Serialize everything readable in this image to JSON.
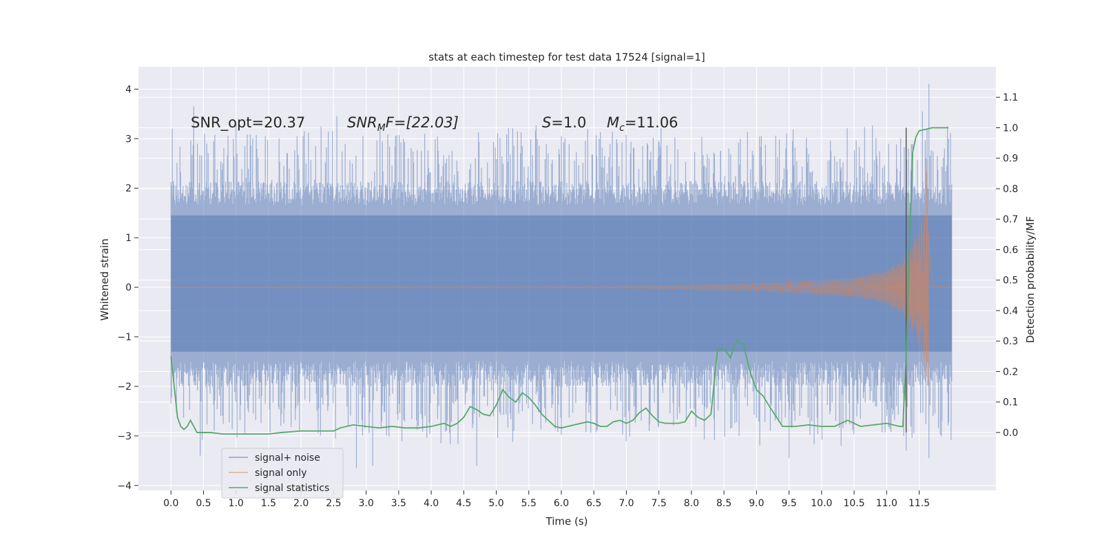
{
  "chart_data": {
    "type": "line",
    "title": "stats at each timestep for test data 17524 [signal=1]",
    "xlabel": "Time (s)",
    "ylabel": "Whitened strain",
    "y2label": "Detection probability/MF",
    "xlim": [
      -0.5,
      12.68
    ],
    "ylim": [
      -4.1,
      4.45
    ],
    "y2lim": [
      -0.19,
      1.2
    ],
    "xticks": [
      0.0,
      0.5,
      1.0,
      1.5,
      2.0,
      2.5,
      3.0,
      3.5,
      4.0,
      4.5,
      5.0,
      5.5,
      6.0,
      6.5,
      7.0,
      7.5,
      8.0,
      8.5,
      9.0,
      9.5,
      10.0,
      10.5,
      11.0,
      11.5
    ],
    "xtick_labels": [
      "0.0",
      "0.5",
      "1.0",
      "1.5",
      "2.0",
      "2.5",
      "3.0",
      "3.5",
      "4.0",
      "4.5",
      "5.0",
      "5.5",
      "6.0",
      "6.5",
      "7.0",
      "7.5",
      "8.0",
      "8.5",
      "9.0",
      "9.5",
      "10.0",
      "10.5",
      "11.0",
      "11.5"
    ],
    "yticks": [
      4,
      3,
      2,
      1,
      0,
      -1,
      -2,
      -3,
      -4
    ],
    "ytick_labels": [
      "4",
      "3",
      "2",
      "1",
      "0",
      "−1",
      "−2",
      "−3",
      "−4"
    ],
    "y2ticks": [
      1.1,
      1.0,
      0.9,
      0.8,
      0.7,
      0.6,
      0.5,
      0.4,
      0.3,
      0.2,
      0.1,
      0.0
    ],
    "y2tick_labels": [
      "1.1",
      "1.0",
      "0.9",
      "0.8",
      "0.7",
      "0.6",
      "0.5",
      "0.4",
      "0.3",
      "0.2",
      "0.1",
      "0.0"
    ],
    "annotations": {
      "snr_opt": "SNR_opt=20.37",
      "snr_mf_base": "SNR",
      "snr_mf_sub": "M",
      "snr_mf_rest": "F=[22.03]",
      "s_var": "S",
      "s_val": "=1.0",
      "mc_var": "M",
      "mc_sub": "c",
      "mc_val": "=11.06"
    },
    "marker_time": 11.3,
    "series": [
      {
        "name": "signal+ noise",
        "color": "#4c72b0",
        "description": "whitened strain with noise",
        "t_start": 0.0,
        "t_end": 12.0,
        "envelope_pos": 1.95,
        "envelope_neg": -1.75,
        "peaks": [
          [
            0.02,
            3.2
          ],
          [
            0.35,
            3.65
          ],
          [
            0.55,
            2.9
          ],
          [
            1.0,
            3.3
          ],
          [
            1.45,
            3.05
          ],
          [
            2.05,
            3.15
          ],
          [
            2.55,
            3.45
          ],
          [
            2.95,
            3.05
          ],
          [
            3.45,
            3.05
          ],
          [
            3.9,
            3.1
          ],
          [
            5.4,
            2.85
          ],
          [
            6.0,
            3.05
          ],
          [
            7.25,
            2.85
          ],
          [
            8.45,
            2.75
          ],
          [
            9.45,
            2.8
          ],
          [
            10.2,
            2.65
          ],
          [
            10.85,
            2.6
          ],
          [
            11.55,
            3.55
          ],
          [
            11.65,
            4.1
          ],
          [
            11.95,
            3.0
          ]
        ],
        "troughs": [
          [
            0.45,
            -3.4
          ],
          [
            2.85,
            -3.65
          ],
          [
            3.1,
            -3.6
          ],
          [
            3.55,
            -3.1
          ],
          [
            4.15,
            -3.15
          ],
          [
            4.7,
            -3.6
          ],
          [
            7.35,
            -2.9
          ],
          [
            8.6,
            -2.85
          ],
          [
            9.05,
            -3.2
          ],
          [
            9.5,
            -3.45
          ],
          [
            10.3,
            -3.2
          ],
          [
            11.3,
            -3.3
          ],
          [
            11.65,
            -3.45
          ],
          [
            11.85,
            -2.7
          ]
        ]
      },
      {
        "name": "signal only",
        "color": "#dd8452",
        "description": "chirp signal",
        "t_start": 0.0,
        "t_end": 12.0,
        "merger_time": 11.65,
        "amplitude_points": [
          [
            0.0,
            0.01
          ],
          [
            7.0,
            0.02
          ],
          [
            8.0,
            0.05
          ],
          [
            9.0,
            0.08
          ],
          [
            10.0,
            0.15
          ],
          [
            10.5,
            0.2
          ],
          [
            11.0,
            0.35
          ],
          [
            11.3,
            0.65
          ],
          [
            11.5,
            1.2
          ],
          [
            11.6,
            2.2
          ],
          [
            11.65,
            3.0
          ],
          [
            11.68,
            1.0
          ],
          [
            11.72,
            0.05
          ],
          [
            12.0,
            0.0
          ]
        ]
      },
      {
        "name": "signal statistics",
        "color": "#55a868",
        "axis": "right",
        "x": [
          0.0,
          0.05,
          0.1,
          0.15,
          0.2,
          0.25,
          0.3,
          0.35,
          0.4,
          0.5,
          0.6,
          0.8,
          1.0,
          1.2,
          1.5,
          1.7,
          2.0,
          2.2,
          2.5,
          2.6,
          2.8,
          3.0,
          3.2,
          3.4,
          3.6,
          3.8,
          4.0,
          4.1,
          4.2,
          4.3,
          4.4,
          4.5,
          4.6,
          4.7,
          4.8,
          4.9,
          5.0,
          5.1,
          5.2,
          5.3,
          5.4,
          5.5,
          5.6,
          5.7,
          5.8,
          5.9,
          6.0,
          6.2,
          6.4,
          6.5,
          6.6,
          6.7,
          6.8,
          6.9,
          7.0,
          7.1,
          7.2,
          7.3,
          7.4,
          7.5,
          7.6,
          7.8,
          7.9,
          8.0,
          8.1,
          8.2,
          8.3,
          8.4,
          8.5,
          8.6,
          8.65,
          8.7,
          8.8,
          8.9,
          9.0,
          9.1,
          9.2,
          9.4,
          9.6,
          9.8,
          10.0,
          10.2,
          10.4,
          10.5,
          10.6,
          10.8,
          11.0,
          11.2,
          11.25,
          11.3,
          11.35,
          11.4,
          11.45,
          11.5,
          11.6,
          11.7,
          11.8,
          11.9,
          11.95
        ],
        "y": [
          0.25,
          0.15,
          0.05,
          0.02,
          0.01,
          0.02,
          0.04,
          0.02,
          0.0,
          0.0,
          0.0,
          -0.005,
          -0.005,
          -0.005,
          -0.005,
          0.0,
          0.005,
          0.005,
          0.005,
          0.015,
          0.025,
          0.02,
          0.015,
          0.02,
          0.015,
          0.015,
          0.02,
          0.025,
          0.03,
          0.02,
          0.03,
          0.05,
          0.085,
          0.075,
          0.06,
          0.055,
          0.09,
          0.14,
          0.115,
          0.1,
          0.13,
          0.115,
          0.09,
          0.06,
          0.04,
          0.02,
          0.015,
          0.025,
          0.035,
          0.03,
          0.02,
          0.02,
          0.035,
          0.04,
          0.03,
          0.04,
          0.065,
          0.08,
          0.055,
          0.035,
          0.03,
          0.03,
          0.035,
          0.07,
          0.05,
          0.04,
          0.06,
          0.27,
          0.275,
          0.245,
          0.28,
          0.3,
          0.29,
          0.2,
          0.14,
          0.12,
          0.085,
          0.02,
          0.02,
          0.025,
          0.02,
          0.02,
          0.04,
          0.03,
          0.02,
          0.025,
          0.03,
          0.02,
          0.02,
          0.25,
          0.6,
          0.92,
          0.97,
          0.99,
          0.995,
          1.0,
          1.0,
          1.0,
          1.0
        ]
      }
    ],
    "legend": {
      "placement": "lower-left",
      "entries": [
        "signal+ noise",
        "signal only",
        "signal statistics"
      ]
    }
  }
}
